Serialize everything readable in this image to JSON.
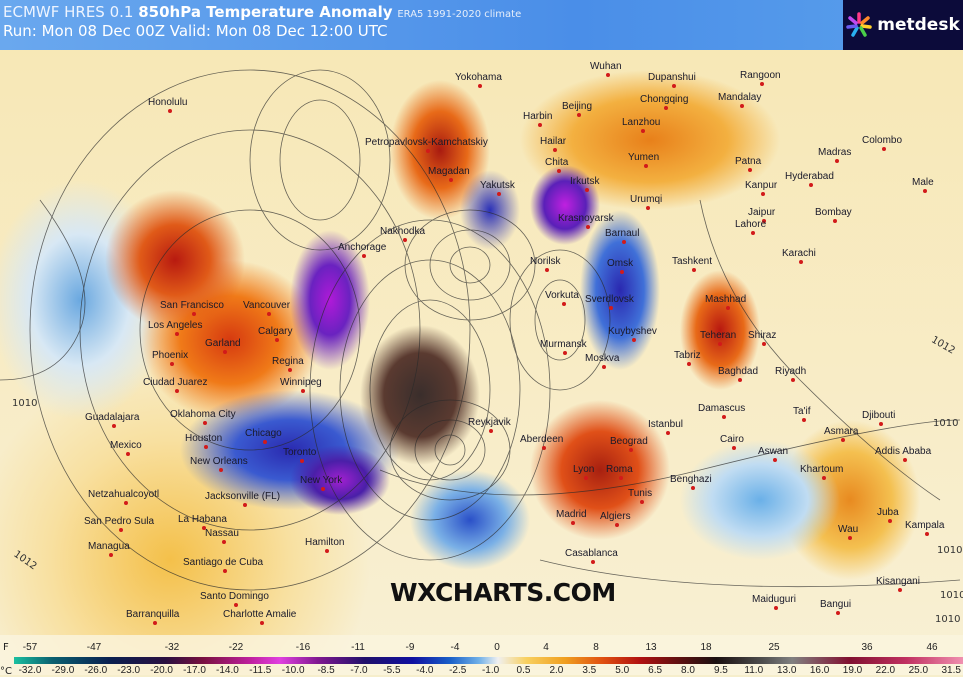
{
  "header": {
    "model": "ECMWF HRES 0.1",
    "parameter": "850hPa Temperature Anomaly",
    "climate": "ERA5 1991-2020 climate",
    "run_line": "Run: Mon 08 Dec 00Z Valid: Mon 08 Dec 12:00 UTC"
  },
  "logo": {
    "text": "metdesk",
    "icon": "asterisk-star-icon"
  },
  "watermark": "WXCHARTS.COM",
  "isobar_labels": [
    "1010",
    "1012",
    "1010",
    "1012",
    "1010",
    "1010",
    "1010"
  ],
  "cities": [
    "Honolulu",
    "Yokohama",
    "Wuhan",
    "Dupanshui",
    "Rangoon",
    "Harbin",
    "Beijing",
    "Chongqing",
    "Mandalay",
    "Petropavlovsk-Kamchatskiy",
    "Lanzhou",
    "Madras",
    "Colombo",
    "Hailar",
    "Magadan",
    "Chita",
    "Yumen",
    "Patna",
    "Hyderabad",
    "Male",
    "Yakutsk",
    "Irkutsk",
    "Kanpur",
    "Urumqi",
    "Jaipur",
    "Bombay",
    "Krasnoyarsk",
    "Nakhodka",
    "Anchorage",
    "Barnaul",
    "Lahore",
    "Norilsk",
    "Omsk",
    "Tashkent",
    "Karachi",
    "Vorkuta",
    "Sverdlovsk",
    "Mashhad",
    "San Francisco",
    "Vancouver",
    "Los Angeles",
    "Calgary",
    "Kuybyshev",
    "Teheran",
    "Shiraz",
    "Phoenix",
    "Garland",
    "Regina",
    "Murmansk",
    "Moskva",
    "Ciudad Juarez",
    "Winnipeg",
    "Tabriz",
    "Baghdad",
    "Riyadh",
    "Oklahoma City",
    "Guadalajara",
    "Reykjavik",
    "Damascus",
    "Ta'if",
    "Djibouti",
    "Houston",
    "Chicago",
    "Istanbul",
    "Aberdeen",
    "Beograd",
    "Mexico",
    "Toronto",
    "Cairo",
    "Aswan",
    "Asmara",
    "Addis Ababa",
    "New Orleans",
    "Lyon",
    "Roma",
    "Benghazi",
    "Khartoum",
    "New York",
    "Tunis",
    "Netzahualcoyotl",
    "Jacksonville (FL)",
    "Madrid",
    "Algiers",
    "Juba",
    "Wau",
    "Kampala",
    "San Pedro Sula",
    "La Habana",
    "Nassau",
    "Hamilton",
    "Managua",
    "Casablanca",
    "Santiago de Cuba",
    "Kisangani",
    "Santo Domingo",
    "Maiduguri",
    "Bangui",
    "Barranquilla",
    "Charlotte Amalie"
  ],
  "legend": {
    "f_unit": "F",
    "c_unit": "°C",
    "fahrenheit": [
      "-57",
      "-47",
      "-32",
      "-22",
      "-16",
      "-11",
      "-9",
      "-4",
      "0",
      "4",
      "8",
      "13",
      "18",
      "25",
      "36",
      "46"
    ],
    "celsius": [
      "-32.0",
      "-29.0",
      "-26.0",
      "-23.0",
      "-20.0",
      "-17.0",
      "-14.0",
      "-11.5",
      "-10.0",
      "-8.5",
      "-7.0",
      "-5.5",
      "-4.0",
      "-2.5",
      "-1.0",
      "0.5",
      "2.0",
      "3.5",
      "5.0",
      "6.5",
      "8.0",
      "9.5",
      "11.0",
      "13.0",
      "16.0",
      "19.0",
      "22.0",
      "25.0",
      "31.5"
    ]
  }
}
